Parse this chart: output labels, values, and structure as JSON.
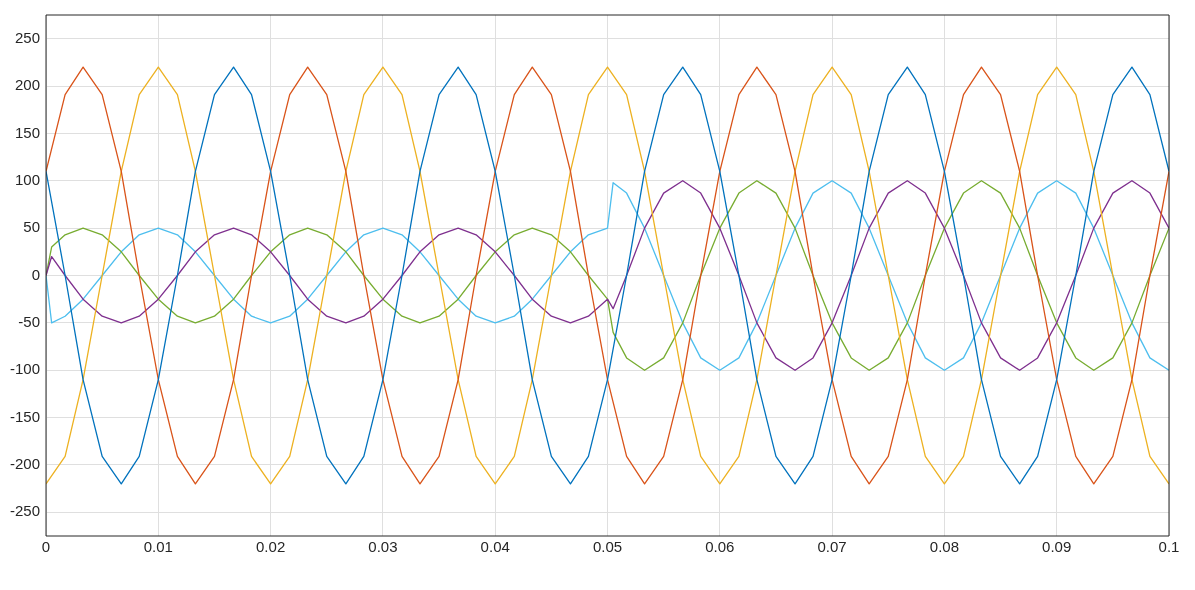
{
  "chart_data": {
    "type": "line",
    "x": [
      0,
      0.0017,
      0.0033,
      0.005,
      0.0067,
      0.0083,
      0.01,
      0.0117,
      0.0133,
      0.015,
      0.0167,
      0.0183,
      0.02,
      0.0217,
      0.0233,
      0.025,
      0.0267,
      0.0283,
      0.03,
      0.0317,
      0.0333,
      0.035,
      0.0367,
      0.0383,
      0.04,
      0.0417,
      0.0433,
      0.045,
      0.0467,
      0.0483,
      0.05,
      0.0517,
      0.0533,
      0.055,
      0.0567,
      0.0583,
      0.06,
      0.0617,
      0.0633,
      0.065,
      0.0667,
      0.0683,
      0.07,
      0.0717,
      0.0733,
      0.075,
      0.0767,
      0.0783,
      0.08,
      0.0817,
      0.0833,
      0.085,
      0.0867,
      0.0883,
      0.09,
      0.0917,
      0.0933,
      0.095,
      0.0967,
      0.0983,
      0.1
    ],
    "series": [
      {
        "color": "#0072bd",
        "values": [
          110,
          0,
          -110,
          -191,
          -220,
          -191,
          -110,
          0,
          110,
          191,
          220,
          191,
          110,
          0,
          -110,
          -191,
          -220,
          -191,
          -110,
          0,
          110,
          191,
          220,
          191,
          110,
          0,
          -110,
          -191,
          -220,
          -191,
          -110,
          0,
          110,
          191,
          220,
          191,
          110,
          0,
          -110,
          -191,
          -220,
          -191,
          -110,
          0,
          110,
          191,
          220,
          191,
          110,
          0,
          -110,
          -191,
          -220,
          -191,
          -110,
          0,
          110,
          191,
          220,
          191,
          110
        ]
      },
      {
        "color": "#d95319",
        "values": [
          110,
          191,
          220,
          191,
          110,
          0,
          -110,
          -191,
          -220,
          -191,
          -110,
          0,
          110,
          191,
          220,
          191,
          110,
          0,
          -110,
          -191,
          -220,
          -191,
          -110,
          0,
          110,
          191,
          220,
          191,
          110,
          0,
          -110,
          -191,
          -220,
          -191,
          -110,
          0,
          110,
          191,
          220,
          191,
          110,
          0,
          -110,
          -191,
          -220,
          -191,
          -110,
          0,
          110,
          191,
          220,
          191,
          110,
          0,
          -110,
          -191,
          -220,
          -191,
          -110,
          0,
          110
        ]
      },
      {
        "color": "#edb120",
        "values": [
          -220,
          -191,
          -110,
          0,
          110,
          191,
          220,
          191,
          110,
          0,
          -110,
          -191,
          -220,
          -191,
          -110,
          0,
          110,
          191,
          220,
          191,
          110,
          0,
          -110,
          -191,
          -220,
          -191,
          -110,
          0,
          110,
          191,
          220,
          191,
          110,
          0,
          -110,
          -191,
          -220,
          -191,
          -110,
          0,
          110,
          191,
          220,
          191,
          110,
          0,
          -110,
          -191,
          -220,
          -191,
          -110,
          0,
          110,
          191,
          220,
          191,
          110,
          0,
          -110,
          -191,
          -220
        ]
      },
      {
        "color": "#7e2f8e",
        "x": [
          0,
          0.0005,
          0.0017,
          0.0033,
          0.005,
          0.0067,
          0.0083,
          0.01,
          0.0117,
          0.0133,
          0.015,
          0.0167,
          0.0183,
          0.02,
          0.0217,
          0.0233,
          0.025,
          0.0267,
          0.0283,
          0.03,
          0.0317,
          0.0333,
          0.035,
          0.0367,
          0.0383,
          0.04,
          0.0417,
          0.0433,
          0.045,
          0.0467,
          0.0483,
          0.05,
          0.0505,
          0.0517,
          0.0533,
          0.055,
          0.0567,
          0.0583,
          0.06,
          0.0617,
          0.0633,
          0.065,
          0.0667,
          0.0683,
          0.07,
          0.0717,
          0.0733,
          0.075,
          0.0767,
          0.0783,
          0.08,
          0.0817,
          0.0833,
          0.085,
          0.0867,
          0.0883,
          0.09,
          0.0917,
          0.0933,
          0.095,
          0.0967,
          0.0983,
          0.1
        ],
        "values": [
          0,
          20,
          0,
          -25,
          -43,
          -50,
          -43,
          -25,
          0,
          25,
          43,
          50,
          43,
          25,
          0,
          -25,
          -43,
          -50,
          -43,
          -25,
          0,
          25,
          43,
          50,
          43,
          25,
          0,
          -25,
          -43,
          -50,
          -43,
          -25,
          -35,
          0,
          50,
          87,
          100,
          87,
          50,
          0,
          -50,
          -87,
          -100,
          -87,
          -50,
          0,
          50,
          87,
          100,
          87,
          50,
          0,
          -50,
          -87,
          -100,
          -87,
          -50,
          0,
          50,
          87,
          100,
          87,
          50
        ]
      },
      {
        "color": "#77ac30",
        "x": [
          0,
          0.0005,
          0.0017,
          0.0033,
          0.005,
          0.0067,
          0.0083,
          0.01,
          0.0117,
          0.0133,
          0.015,
          0.0167,
          0.0183,
          0.02,
          0.0217,
          0.0233,
          0.025,
          0.0267,
          0.0283,
          0.03,
          0.0317,
          0.0333,
          0.035,
          0.0367,
          0.0383,
          0.04,
          0.0417,
          0.0433,
          0.045,
          0.0467,
          0.0483,
          0.05,
          0.0505,
          0.0517,
          0.0533,
          0.055,
          0.0567,
          0.0583,
          0.06,
          0.0617,
          0.0633,
          0.065,
          0.0667,
          0.0683,
          0.07,
          0.0717,
          0.0733,
          0.075,
          0.0767,
          0.0783,
          0.08,
          0.0817,
          0.0833,
          0.085,
          0.0867,
          0.0883,
          0.09,
          0.0917,
          0.0933,
          0.095,
          0.0967,
          0.0983,
          0.1
        ],
        "values": [
          0,
          30,
          43,
          50,
          43,
          25,
          0,
          -25,
          -43,
          -50,
          -43,
          -25,
          0,
          25,
          43,
          50,
          43,
          25,
          0,
          -25,
          -43,
          -50,
          -43,
          -25,
          0,
          25,
          43,
          50,
          43,
          25,
          0,
          -25,
          -60,
          -87,
          -100,
          -87,
          -50,
          0,
          50,
          87,
          100,
          87,
          50,
          0,
          -50,
          -87,
          -100,
          -87,
          -50,
          0,
          50,
          87,
          100,
          87,
          50,
          0,
          -50,
          -87,
          -100,
          -87,
          -50,
          0,
          50
        ]
      },
      {
        "color": "#4dbeee",
        "x": [
          0,
          0.0005,
          0.0017,
          0.0033,
          0.005,
          0.0067,
          0.0083,
          0.01,
          0.0117,
          0.0133,
          0.015,
          0.0167,
          0.0183,
          0.02,
          0.0217,
          0.0233,
          0.025,
          0.0267,
          0.0283,
          0.03,
          0.0317,
          0.0333,
          0.035,
          0.0367,
          0.0383,
          0.04,
          0.0417,
          0.0433,
          0.045,
          0.0467,
          0.0483,
          0.05,
          0.0505,
          0.0517,
          0.0533,
          0.055,
          0.0567,
          0.0583,
          0.06,
          0.0617,
          0.0633,
          0.065,
          0.0667,
          0.0683,
          0.07,
          0.0717,
          0.0733,
          0.075,
          0.0767,
          0.0783,
          0.08,
          0.0817,
          0.0833,
          0.085,
          0.0867,
          0.0883,
          0.09,
          0.0917,
          0.0933,
          0.095,
          0.0967,
          0.0983,
          0.1
        ],
        "values": [
          0,
          -50,
          -43,
          -25,
          0,
          25,
          43,
          50,
          43,
          25,
          0,
          -25,
          -43,
          -50,
          -43,
          -25,
          0,
          25,
          43,
          50,
          43,
          25,
          0,
          -25,
          -43,
          -50,
          -43,
          -25,
          0,
          25,
          43,
          50,
          98,
          87,
          50,
          0,
          -50,
          -87,
          -100,
          -87,
          -50,
          0,
          50,
          87,
          100,
          87,
          50,
          0,
          -50,
          -87,
          -100,
          -87,
          -50,
          0,
          50,
          87,
          100,
          87,
          50,
          0,
          -50,
          -87,
          -100
        ]
      }
    ],
    "xlim": [
      0,
      0.1
    ],
    "xticks": [
      0,
      0.01,
      0.02,
      0.03,
      0.04,
      0.05,
      0.06,
      0.07,
      0.08,
      0.09,
      0.1
    ],
    "ylim": [
      -275,
      275
    ],
    "yticks": [
      -250,
      -200,
      -150,
      -100,
      -50,
      0,
      50,
      100,
      150,
      200,
      250
    ],
    "grid": true,
    "legend": false,
    "marker": "none",
    "line_style": "solid"
  }
}
